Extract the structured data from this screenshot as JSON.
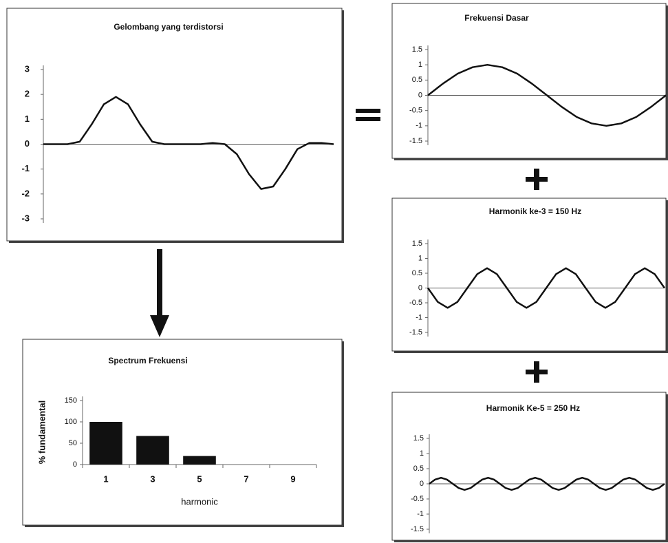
{
  "chart_data": [
    {
      "type": "line",
      "title": "Gelombang yang terdistorsi",
      "values": [
        0,
        0,
        0,
        0.1,
        0.8,
        1.6,
        1.9,
        1.6,
        0.8,
        0.1,
        0,
        0,
        0,
        0,
        0.05,
        0,
        -0.4,
        -1.2,
        -1.8,
        -1.7,
        -1.0,
        -0.2,
        0.05,
        0.05,
        0
      ],
      "color": "#111111",
      "ylim": [
        -3,
        3
      ],
      "yticks": [
        -3,
        -2,
        -1,
        0,
        1,
        2,
        3
      ]
    },
    {
      "type": "line",
      "title": "Frekuensi Dasar",
      "values": [
        0,
        0.38,
        0.71,
        0.92,
        1,
        0.92,
        0.71,
        0.38,
        0,
        -0.38,
        -0.71,
        -0.92,
        -1,
        -0.92,
        -0.71,
        -0.38,
        0
      ],
      "color": "#111111",
      "ylim": [
        -1.5,
        1.5
      ],
      "yticks": [
        -1.5,
        -1,
        -0.5,
        0,
        0.5,
        1,
        1.5
      ]
    },
    {
      "type": "line",
      "title": "Harmonik ke-3 = 150 Hz",
      "values": [
        0,
        -0.47,
        -0.67,
        -0.47,
        0,
        0.47,
        0.67,
        0.47,
        0,
        -0.47,
        -0.67,
        -0.47,
        0,
        0.47,
        0.67,
        0.47,
        0,
        -0.47,
        -0.67,
        -0.47,
        0,
        0.47,
        0.67,
        0.47,
        0
      ],
      "color": "#111111",
      "ylim": [
        -1.5,
        1.5
      ],
      "yticks": [
        -1.5,
        -1,
        -0.5,
        0,
        0.5,
        1,
        1.5
      ]
    },
    {
      "type": "line",
      "title": "Harmonik Ke-5 = 250 Hz",
      "values": [
        0,
        0.14,
        0.2,
        0.14,
        0,
        -0.14,
        -0.2,
        -0.14,
        0,
        0.14,
        0.2,
        0.14,
        0,
        -0.14,
        -0.2,
        -0.14,
        0,
        0.14,
        0.2,
        0.14,
        0,
        -0.14,
        -0.2,
        -0.14,
        0,
        0.14,
        0.2,
        0.14,
        0,
        -0.14,
        -0.2,
        -0.14,
        0,
        0.14,
        0.2,
        0.14,
        0,
        -0.14,
        -0.2,
        -0.14,
        0
      ],
      "color": "#111111",
      "ylim": [
        -1.5,
        1.5
      ],
      "yticks": [
        -1.5,
        -1,
        -0.5,
        0,
        0.5,
        1,
        1.5
      ]
    },
    {
      "type": "bar",
      "title": "Spectrum Frekuensi",
      "x_label": "harmonic",
      "y_label": "% fundamental",
      "categories": [
        "1",
        "3",
        "5",
        "7",
        "9"
      ],
      "values": [
        100,
        67,
        20,
        0,
        0
      ],
      "color": "#111111",
      "ylim": [
        0,
        150
      ],
      "yticks": [
        0,
        50,
        100,
        150
      ]
    }
  ]
}
